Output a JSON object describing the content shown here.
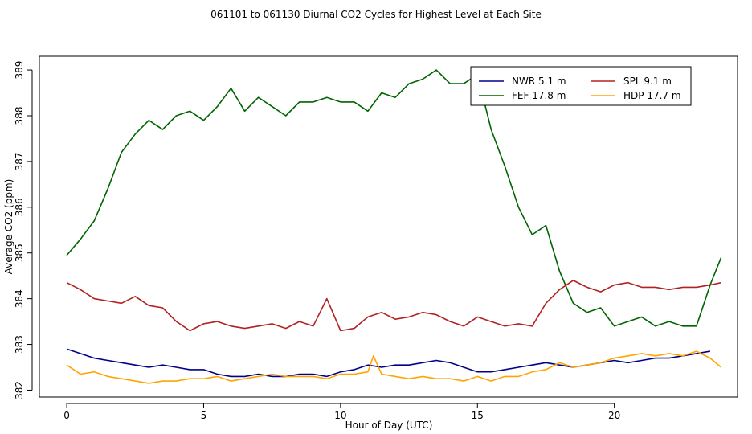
{
  "chart_data": {
    "type": "line",
    "title": "061101  to  061130 Diurnal CO2 Cycles for Highest Level at Each Site",
    "xlabel": "Hour of Day (UTC)",
    "ylabel": "Average CO2 (ppm)",
    "xlim": [
      -1,
      24.5
    ],
    "ylim": [
      381.85,
      389.3
    ],
    "xticks": [
      0,
      5,
      10,
      15,
      20
    ],
    "yticks": [
      382,
      383,
      384,
      385,
      386,
      387,
      388,
      389
    ],
    "grid": false,
    "legend": "top-right",
    "series": [
      {
        "name": "NWR  5.1 m",
        "color": "#00008b",
        "x": [
          0,
          0.5,
          1,
          1.5,
          2,
          2.5,
          3,
          3.5,
          4,
          4.5,
          5,
          5.5,
          6,
          6.5,
          7,
          7.5,
          8,
          8.5,
          9,
          9.5,
          10,
          10.5,
          11,
          11.5,
          12,
          12.5,
          13,
          13.5,
          14,
          14.5,
          15,
          15.5,
          16,
          16.5,
          17,
          17.5,
          18,
          18.5,
          19,
          19.5,
          20,
          20.5,
          21,
          21.5,
          22,
          22.5,
          23,
          23.5
        ],
        "y": [
          382.9,
          382.8,
          382.7,
          382.65,
          382.6,
          382.55,
          382.5,
          382.55,
          382.5,
          382.45,
          382.45,
          382.35,
          382.3,
          382.3,
          382.35,
          382.3,
          382.3,
          382.35,
          382.35,
          382.3,
          382.4,
          382.45,
          382.55,
          382.5,
          382.55,
          382.55,
          382.6,
          382.65,
          382.6,
          382.5,
          382.4,
          382.4,
          382.45,
          382.5,
          382.55,
          382.6,
          382.55,
          382.5,
          382.55,
          382.6,
          382.65,
          382.6,
          382.65,
          382.7,
          382.7,
          382.75,
          382.8,
          382.85
        ]
      },
      {
        "name": "FEF  17.8 m",
        "color": "#006400",
        "x": [
          0,
          0.5,
          1,
          1.5,
          2,
          2.5,
          3,
          3.5,
          4,
          4.5,
          5,
          5.5,
          6,
          6.5,
          7,
          7.5,
          8,
          8.5,
          9,
          9.5,
          10,
          10.5,
          11,
          11.5,
          12,
          12.5,
          13,
          13.5,
          14,
          14.5,
          15,
          15.5,
          16,
          16.5,
          17,
          17.5,
          18,
          18.5,
          19,
          19.5,
          20,
          20.5,
          21,
          21.5,
          22,
          22.5,
          23,
          23.5,
          23.9
        ],
        "y": [
          384.95,
          385.3,
          385.7,
          386.4,
          387.2,
          387.6,
          387.9,
          387.7,
          388.0,
          388.1,
          387.9,
          388.2,
          388.6,
          388.1,
          388.4,
          388.2,
          388.0,
          388.3,
          388.3,
          388.4,
          388.3,
          388.3,
          388.1,
          388.5,
          388.4,
          388.7,
          388.8,
          389.0,
          388.7,
          388.7,
          388.9,
          387.7,
          386.9,
          386.0,
          385.4,
          385.6,
          384.6,
          383.9,
          383.7,
          383.8,
          383.4,
          383.5,
          383.6,
          383.4,
          383.5,
          383.4,
          383.4,
          384.3,
          384.9
        ]
      },
      {
        "name": "SPL  9.1 m",
        "color": "#b22222",
        "x": [
          0,
          0.5,
          1,
          1.5,
          2,
          2.5,
          3,
          3.5,
          4,
          4.5,
          5,
          5.5,
          6,
          6.5,
          7,
          7.5,
          8,
          8.5,
          9,
          9.5,
          10,
          10.5,
          11,
          11.5,
          12,
          12.5,
          13,
          13.5,
          14,
          14.5,
          15,
          15.5,
          16,
          16.5,
          17,
          17.5,
          18,
          18.5,
          19,
          19.5,
          20,
          20.5,
          21,
          21.5,
          22,
          22.5,
          23,
          23.5,
          23.9
        ],
        "y": [
          384.35,
          384.2,
          384.0,
          383.95,
          383.9,
          384.05,
          383.85,
          383.8,
          383.5,
          383.3,
          383.45,
          383.5,
          383.4,
          383.35,
          383.4,
          383.45,
          383.35,
          383.5,
          383.4,
          384.0,
          383.3,
          383.35,
          383.6,
          383.7,
          383.55,
          383.6,
          383.7,
          383.65,
          383.5,
          383.4,
          383.6,
          383.5,
          383.4,
          383.45,
          383.4,
          383.9,
          384.2,
          384.4,
          384.25,
          384.15,
          384.3,
          384.35,
          384.25,
          384.25,
          384.2,
          384.25,
          384.25,
          384.3,
          384.35
        ]
      },
      {
        "name": "HDP  17.7 m",
        "color": "#ffa500",
        "x": [
          0,
          0.5,
          1,
          1.5,
          2,
          2.5,
          3,
          3.5,
          4,
          4.5,
          5,
          5.5,
          6,
          6.5,
          7,
          7.5,
          8,
          8.5,
          9,
          9.5,
          10,
          10.5,
          11,
          11.2,
          11.5,
          12,
          12.5,
          13,
          13.5,
          14,
          14.5,
          15,
          15.5,
          16,
          16.5,
          17,
          17.5,
          18,
          18.5,
          19,
          19.5,
          20,
          20.5,
          21,
          21.5,
          22,
          22.5,
          23,
          23.5,
          23.9
        ],
        "y": [
          382.55,
          382.35,
          382.4,
          382.3,
          382.25,
          382.2,
          382.15,
          382.2,
          382.2,
          382.25,
          382.25,
          382.3,
          382.2,
          382.25,
          382.3,
          382.35,
          382.3,
          382.3,
          382.3,
          382.25,
          382.35,
          382.35,
          382.4,
          382.75,
          382.35,
          382.3,
          382.25,
          382.3,
          382.25,
          382.25,
          382.2,
          382.3,
          382.2,
          382.3,
          382.3,
          382.4,
          382.45,
          382.6,
          382.5,
          382.55,
          382.6,
          382.7,
          382.75,
          382.8,
          382.75,
          382.8,
          382.75,
          382.85,
          382.7,
          382.5
        ]
      }
    ]
  }
}
